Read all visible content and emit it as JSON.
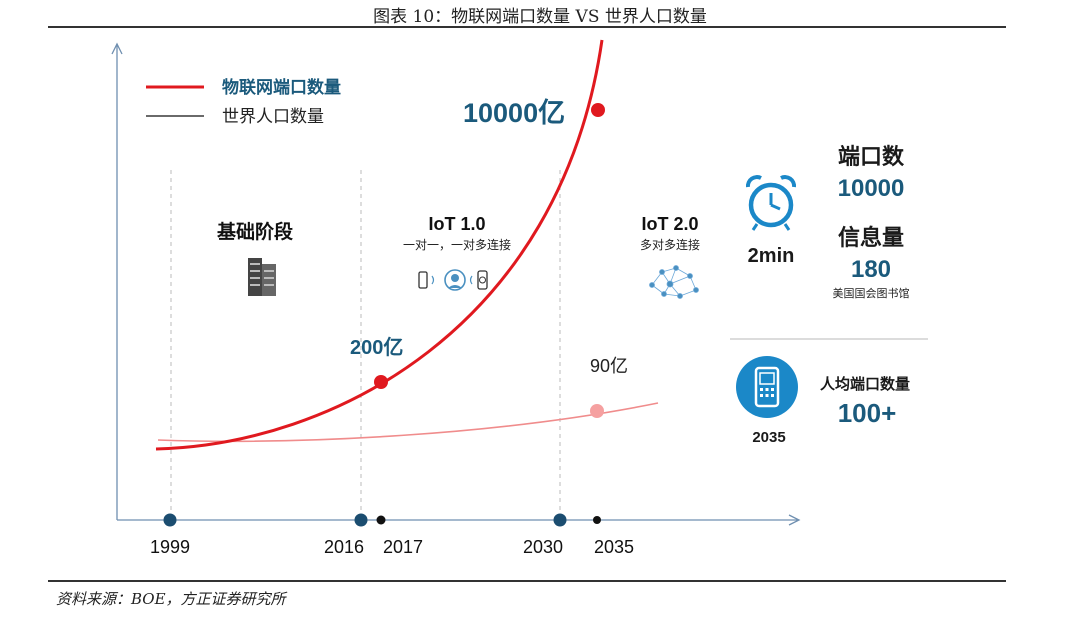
{
  "figure_title": "图表 10：物联网端口数量 VS 世界人口数量",
  "source": "资料来源：BOE，方正证券研究所",
  "colors": {
    "iot": "#e0191f",
    "population": "#f08c8c",
    "accent": "#1b5a7c",
    "dark": "#1a1a1a",
    "axis": "#6f8fb0"
  },
  "chart_data": {
    "type": "line",
    "legend": {
      "placement": "top-left",
      "items": [
        "物联网端口数量",
        "世界人口数量"
      ]
    },
    "x_ticks": [
      1999,
      2016,
      2017,
      2030,
      2035
    ],
    "series": [
      {
        "name": "物联网端口数量",
        "color": "#e0191f",
        "points": [
          {
            "x": 2017,
            "y": 200,
            "label": "200亿"
          },
          {
            "x": 2035,
            "y": 10000,
            "label": "10000亿"
          }
        ]
      },
      {
        "name": "世界人口数量",
        "color": "#f08c8c",
        "points": [
          {
            "x": 2035,
            "y": 90,
            "label": "90亿"
          }
        ]
      }
    ],
    "grid": false
  },
  "stages": [
    {
      "title": "基础阶段",
      "subtitle": "",
      "icon": "server-icon"
    },
    {
      "title": "IoT 1.0",
      "subtitle": "一对一，一对多连接",
      "icon": "device-connection-icon"
    },
    {
      "title": "IoT 2.0",
      "subtitle": "多对多连接",
      "icon": "network-mesh-icon"
    }
  ],
  "panel": {
    "clock_label": "2min",
    "ports_title": "端口数",
    "ports_value": "10000",
    "info_title": "信息量",
    "info_value": "180",
    "info_note": "美国国会图书馆",
    "year_label": "2035",
    "per_capita_title": "人均端口数量",
    "per_capita_value": "100+"
  }
}
